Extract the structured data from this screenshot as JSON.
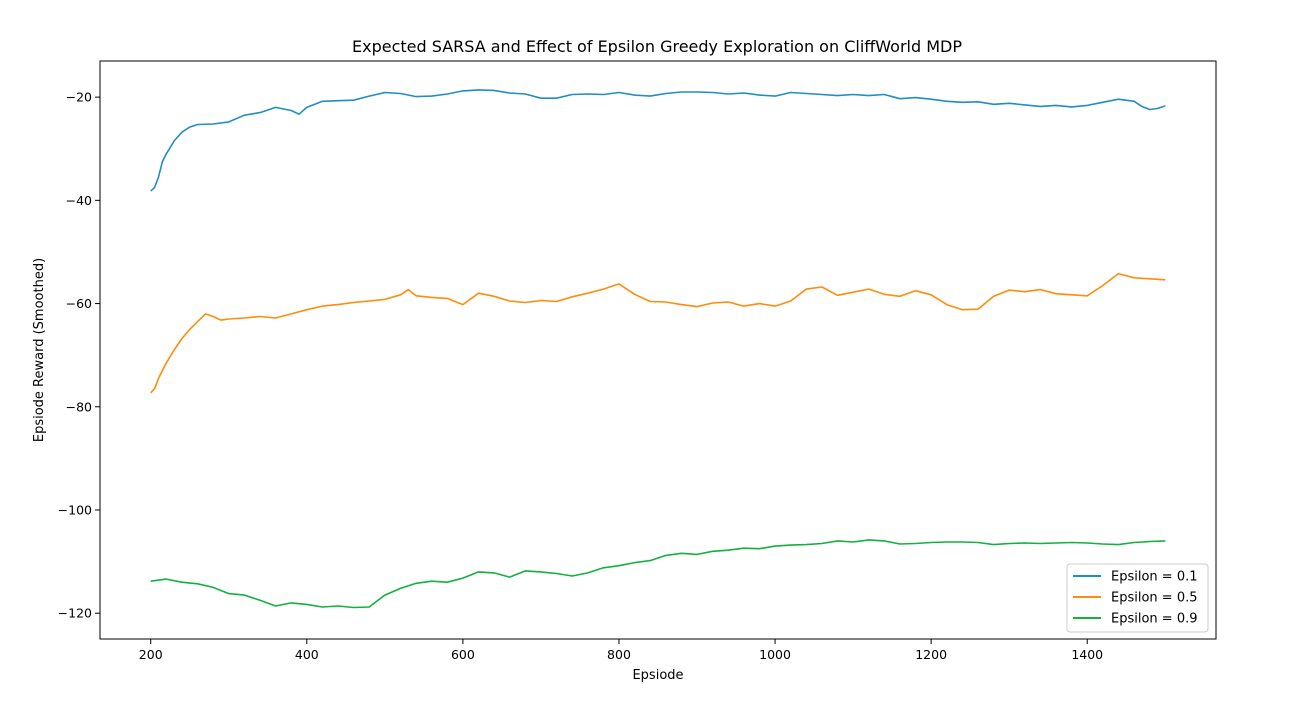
{
  "chart_data": {
    "type": "line",
    "title": "Expected SARSA and Effect of Epsilon Greedy Exploration on CliffWorld MDP",
    "xlabel": "Epsiode",
    "ylabel": "Epsiode Reward (Smoothed)",
    "xlim": [
      135,
      1565
    ],
    "ylim": [
      -125,
      -13
    ],
    "x_ticks": [
      200,
      400,
      600,
      800,
      1000,
      1200,
      1400
    ],
    "x_tick_labels": [
      "200",
      "400",
      "600",
      "800",
      "1000",
      "1200",
      "1400"
    ],
    "y_ticks": [
      -20,
      -40,
      -60,
      -80,
      -100,
      -120
    ],
    "y_tick_labels": [
      "−20",
      "−40",
      "−60",
      "−80",
      "−100",
      "−120"
    ],
    "grid": false,
    "legend_position": "lower-right",
    "series": [
      {
        "name": "Epsilon = 0.1",
        "color": "#1f8ec4",
        "x": [
          200,
          205,
          210,
          215,
          220,
          230,
          240,
          250,
          260,
          280,
          300,
          320,
          340,
          360,
          380,
          390,
          400,
          420,
          440,
          460,
          480,
          500,
          520,
          540,
          560,
          580,
          600,
          620,
          640,
          660,
          680,
          700,
          720,
          740,
          760,
          780,
          800,
          820,
          840,
          860,
          880,
          900,
          920,
          940,
          960,
          980,
          1000,
          1020,
          1040,
          1060,
          1080,
          1100,
          1120,
          1140,
          1160,
          1180,
          1200,
          1220,
          1240,
          1260,
          1280,
          1300,
          1320,
          1340,
          1360,
          1380,
          1400,
          1420,
          1440,
          1460,
          1470,
          1480,
          1490,
          1500
        ],
        "values": [
          -38.2,
          -37.5,
          -35.5,
          -32.5,
          -31,
          -28.5,
          -26.8,
          -25.8,
          -25.3,
          -25.2,
          -24.8,
          -23.5,
          -23,
          -22,
          -22.6,
          -23.3,
          -22,
          -20.8,
          -20.7,
          -20.6,
          -19.8,
          -19.1,
          -19.3,
          -19.9,
          -19.8,
          -19.4,
          -18.8,
          -18.6,
          -18.7,
          -19.2,
          -19.4,
          -20.2,
          -20.2,
          -19.5,
          -19.4,
          -19.5,
          -19.1,
          -19.6,
          -19.8,
          -19.3,
          -19,
          -19,
          -19.1,
          -19.4,
          -19.2,
          -19.6,
          -19.8,
          -19.1,
          -19.3,
          -19.5,
          -19.7,
          -19.5,
          -19.7,
          -19.5,
          -20.3,
          -20.1,
          -20.4,
          -20.8,
          -21,
          -20.9,
          -21.4,
          -21.2,
          -21.5,
          -21.8,
          -21.6,
          -21.9,
          -21.6,
          -21,
          -20.4,
          -20.8,
          -21.8,
          -22.4,
          -22.2,
          -21.7
        ]
      },
      {
        "name": "Epsilon = 0.5",
        "color": "#ff8c0a",
        "x": [
          200,
          205,
          210,
          220,
          230,
          240,
          250,
          260,
          270,
          280,
          290,
          300,
          320,
          340,
          360,
          380,
          400,
          420,
          440,
          460,
          480,
          500,
          520,
          530,
          540,
          560,
          580,
          600,
          620,
          640,
          660,
          680,
          700,
          720,
          740,
          760,
          780,
          800,
          820,
          840,
          860,
          880,
          900,
          920,
          940,
          960,
          980,
          1000,
          1020,
          1040,
          1060,
          1080,
          1100,
          1120,
          1140,
          1160,
          1180,
          1200,
          1220,
          1240,
          1260,
          1280,
          1300,
          1320,
          1340,
          1360,
          1380,
          1400,
          1420,
          1440,
          1460,
          1480,
          1500
        ],
        "values": [
          -77.3,
          -76.5,
          -74.5,
          -71.5,
          -69,
          -66.8,
          -65,
          -63.5,
          -62,
          -62.5,
          -63.2,
          -63,
          -62.8,
          -62.5,
          -62.8,
          -62,
          -61.2,
          -60.5,
          -60.2,
          -59.8,
          -59.5,
          -59.2,
          -58.3,
          -57.3,
          -58.5,
          -58.8,
          -59,
          -60.2,
          -58,
          -58.6,
          -59.5,
          -59.8,
          -59.4,
          -59.6,
          -58.7,
          -58,
          -57.2,
          -56.2,
          -58.2,
          -59.6,
          -59.7,
          -60.2,
          -60.6,
          -59.9,
          -59.7,
          -60.5,
          -60,
          -60.5,
          -59.5,
          -57.2,
          -56.8,
          -58.4,
          -57.8,
          -57.2,
          -58.2,
          -58.6,
          -57.5,
          -58.3,
          -60.2,
          -61.2,
          -61.1,
          -58.6,
          -57.4,
          -57.7,
          -57.3,
          -58.1,
          -58.3,
          -58.5,
          -56.5,
          -54.2,
          -55,
          -55.2,
          -55.4
        ]
      },
      {
        "name": "Epsilon = 0.9",
        "color": "#13b13f",
        "x": [
          200,
          220,
          240,
          260,
          280,
          300,
          320,
          340,
          360,
          380,
          400,
          420,
          440,
          460,
          480,
          500,
          520,
          540,
          560,
          580,
          600,
          620,
          640,
          660,
          680,
          700,
          720,
          740,
          760,
          780,
          800,
          820,
          840,
          860,
          880,
          900,
          920,
          940,
          960,
          980,
          1000,
          1020,
          1040,
          1060,
          1080,
          1100,
          1120,
          1140,
          1160,
          1180,
          1200,
          1220,
          1240,
          1260,
          1280,
          1300,
          1320,
          1340,
          1360,
          1380,
          1400,
          1420,
          1440,
          1460,
          1480,
          1500
        ],
        "values": [
          -113.8,
          -113.4,
          -114,
          -114.3,
          -115,
          -116.2,
          -116.5,
          -117.5,
          -118.6,
          -118,
          -118.3,
          -118.8,
          -118.6,
          -118.9,
          -118.8,
          -116.5,
          -115.2,
          -114.2,
          -113.8,
          -114,
          -113.2,
          -112,
          -112.2,
          -113,
          -111.8,
          -112,
          -112.3,
          -112.8,
          -112.2,
          -111.2,
          -110.8,
          -110.2,
          -109.8,
          -108.8,
          -108.4,
          -108.6,
          -108,
          -107.8,
          -107.4,
          -107.5,
          -107,
          -106.8,
          -106.7,
          -106.5,
          -106,
          -106.2,
          -105.8,
          -106,
          -106.6,
          -106.5,
          -106.3,
          -106.2,
          -106.2,
          -106.3,
          -106.7,
          -106.5,
          -106.4,
          -106.5,
          -106.4,
          -106.3,
          -106.4,
          -106.6,
          -106.7,
          -106.3,
          -106.1,
          -106
        ]
      }
    ]
  }
}
